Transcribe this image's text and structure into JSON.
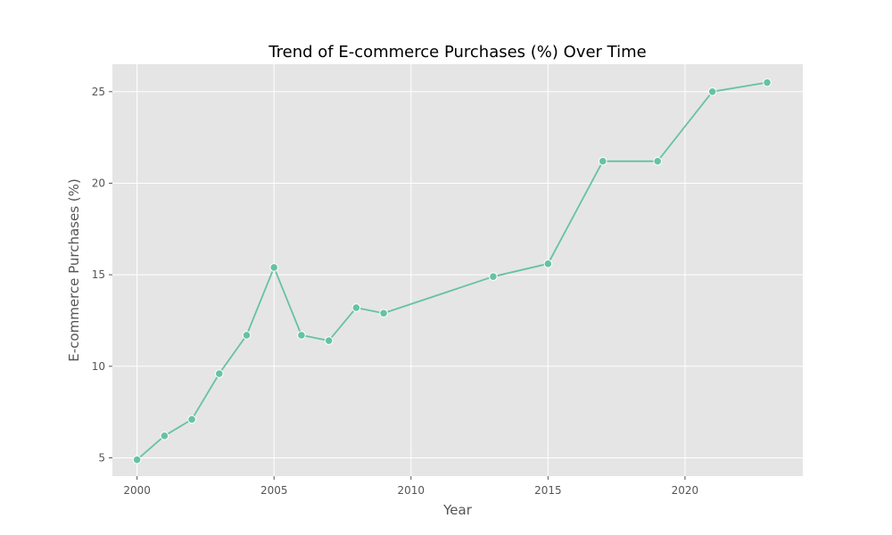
{
  "chart_data": {
    "type": "line",
    "title": "Trend of E-commerce Purchases (%) Over Time",
    "xlabel": "Year",
    "ylabel": "E-commerce Purchases (%)",
    "xlim": [
      1999.1,
      2024.3
    ],
    "ylim": [
      4.0,
      26.5
    ],
    "x_ticks": [
      2000,
      2005,
      2010,
      2015,
      2020
    ],
    "y_ticks": [
      5,
      10,
      15,
      20,
      25
    ],
    "grid": true,
    "legend": "none",
    "colors": {
      "plot_background": "#e5e5e5",
      "grid": "#ffffff",
      "line": "#66c2a5",
      "marker_edge": "#ffffff"
    },
    "series": [
      {
        "x": [
          2000,
          2001,
          2002,
          2003,
          2004,
          2005,
          2006,
          2007,
          2008,
          2009,
          2013,
          2015,
          2017,
          2019,
          2021,
          2023
        ],
        "y": [
          4.9,
          6.2,
          7.1,
          9.6,
          11.7,
          15.4,
          11.7,
          11.4,
          13.2,
          12.9,
          14.9,
          15.6,
          21.2,
          21.2,
          25.0,
          25.5
        ]
      }
    ]
  }
}
